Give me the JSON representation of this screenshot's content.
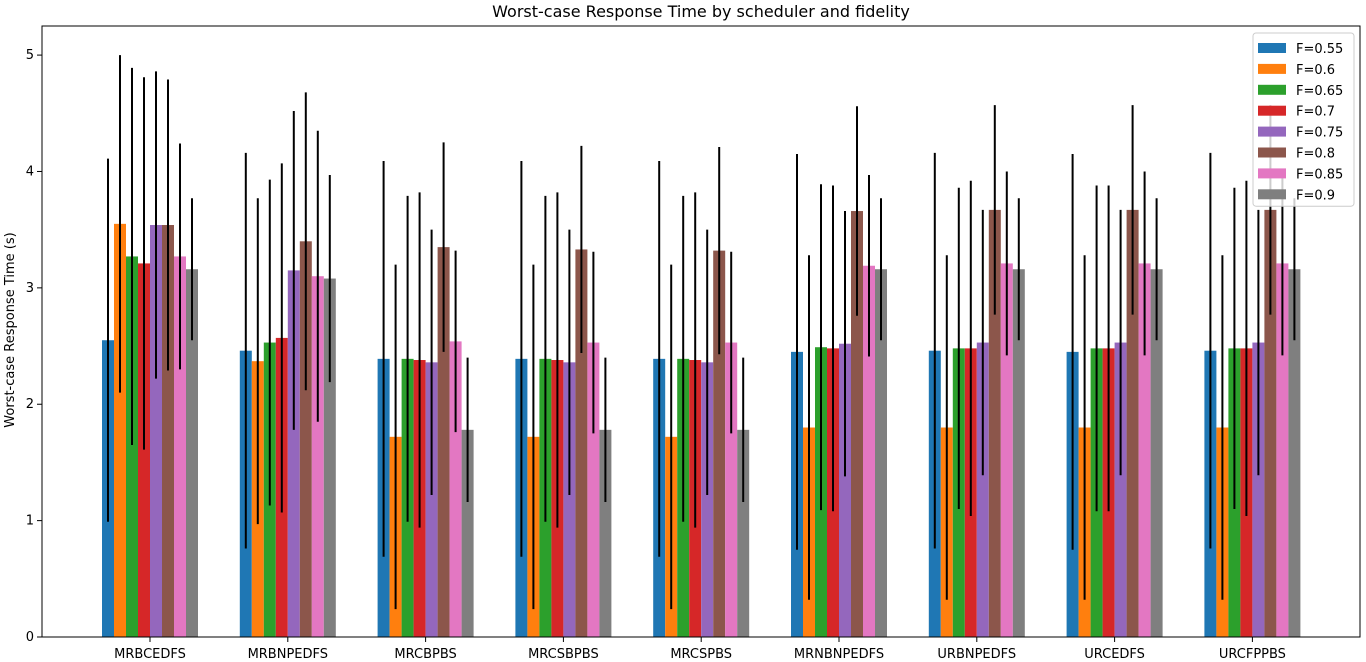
{
  "chart_data": {
    "type": "bar",
    "title": "Worst-case Response Time by scheduler and fidelity",
    "xlabel": "",
    "ylabel": "Worst-case Response Time (s)",
    "ylim": [
      0,
      5.25
    ],
    "yticks": [
      "0",
      "1",
      "2",
      "3",
      "4",
      "5"
    ],
    "legend_position": "top-right",
    "grid": false,
    "categories": [
      "MRBCEDFS",
      "MRBNPEDFS",
      "MRCBPBS",
      "MRCSBPBS",
      "MRCSPBS",
      "MRNBNPEDFS",
      "URBNPEDFS",
      "URCEDFS",
      "URCFPPBS"
    ],
    "series": [
      {
        "name": "F=0.55",
        "color": "#1f77b4",
        "values": [
          2.55,
          2.46,
          2.39,
          2.39,
          2.39,
          2.45,
          2.46,
          2.45,
          2.46
        ],
        "errors": [
          1.56,
          1.7,
          1.7,
          1.7,
          1.7,
          1.7,
          1.7,
          1.7,
          1.7
        ]
      },
      {
        "name": "F=0.6",
        "color": "#ff7f0e",
        "values": [
          3.55,
          2.37,
          1.72,
          1.72,
          1.72,
          1.8,
          1.8,
          1.8,
          1.8
        ],
        "errors": [
          1.45,
          1.4,
          1.48,
          1.48,
          1.48,
          1.48,
          1.48,
          1.48,
          1.48
        ]
      },
      {
        "name": "F=0.65",
        "color": "#2ca02c",
        "values": [
          3.27,
          2.53,
          2.39,
          2.39,
          2.39,
          2.49,
          2.48,
          2.48,
          2.48
        ],
        "errors": [
          1.62,
          1.4,
          1.4,
          1.4,
          1.4,
          1.4,
          1.38,
          1.4,
          1.38
        ]
      },
      {
        "name": "F=0.7",
        "color": "#d62728",
        "values": [
          3.21,
          2.57,
          2.38,
          2.38,
          2.38,
          2.48,
          2.48,
          2.48,
          2.48
        ],
        "errors": [
          1.6,
          1.5,
          1.44,
          1.44,
          1.44,
          1.4,
          1.44,
          1.4,
          1.44
        ]
      },
      {
        "name": "F=0.75",
        "color": "#9467bd",
        "values": [
          3.54,
          3.15,
          2.36,
          2.36,
          2.36,
          2.52,
          2.53,
          2.53,
          2.53
        ],
        "errors": [
          1.32,
          1.37,
          1.14,
          1.14,
          1.14,
          1.14,
          1.14,
          1.14,
          1.14
        ]
      },
      {
        "name": "F=0.8",
        "color": "#8c564b",
        "values": [
          3.54,
          3.4,
          3.35,
          3.33,
          3.32,
          3.66,
          3.67,
          3.67,
          3.67
        ],
        "errors": [
          1.25,
          1.28,
          0.9,
          0.89,
          0.89,
          0.9,
          0.9,
          0.9,
          0.9
        ]
      },
      {
        "name": "F=0.85",
        "color": "#e377c2",
        "values": [
          3.27,
          3.1,
          2.54,
          2.53,
          2.53,
          3.19,
          3.21,
          3.21,
          3.21
        ],
        "errors": [
          0.97,
          1.25,
          0.78,
          0.78,
          0.78,
          0.78,
          0.79,
          0.79,
          0.79
        ]
      },
      {
        "name": "F=0.9",
        "color": "#7f7f7f",
        "values": [
          3.16,
          3.08,
          1.78,
          1.78,
          1.78,
          3.16,
          3.16,
          3.16,
          3.16
        ],
        "errors": [
          0.61,
          0.89,
          0.62,
          0.62,
          0.62,
          0.61,
          0.61,
          0.61,
          0.61
        ]
      }
    ]
  }
}
